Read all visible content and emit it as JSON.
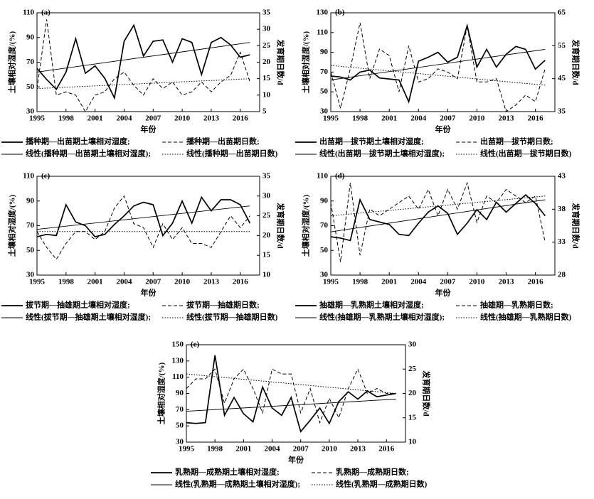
{
  "chart_data": [
    {
      "type": "line",
      "panel_label": "(a)",
      "xlabel": "年份",
      "ylabel": "土壤相对湿度/(%)",
      "y2label": "发育期日数/d",
      "x": [
        1995,
        1996,
        1997,
        1998,
        1999,
        2000,
        2001,
        2002,
        2003,
        2004,
        2005,
        2006,
        2007,
        2008,
        2009,
        2010,
        2011,
        2012,
        2013,
        2014,
        2015,
        2016,
        2017
      ],
      "xlim": [
        1995,
        2018
      ],
      "xticks": [
        1995,
        1998,
        2001,
        2004,
        2007,
        2010,
        2013,
        2016
      ],
      "ylim": [
        30,
        110
      ],
      "yticks": [
        30,
        50,
        70,
        90,
        110
      ],
      "y2lim": [
        5,
        35
      ],
      "y2ticks": [
        5,
        10,
        15,
        20,
        25,
        30,
        35
      ],
      "series": [
        {
          "name": "播种期—出苗期土壤相对湿度;",
          "color": "#000",
          "dash": "solid",
          "values": [
            65,
            56,
            48,
            62,
            89,
            61,
            67,
            57,
            41,
            87,
            100,
            75,
            87,
            88,
            70,
            89,
            86,
            60,
            86,
            90,
            84,
            74,
            76
          ]
        },
        {
          "name": "播种期—出苗期日数;",
          "color": "#000",
          "dash": "dashed",
          "axis": "y2",
          "values": [
            12,
            33,
            10,
            11,
            10,
            5,
            10,
            11,
            15,
            17,
            13,
            10,
            15,
            12,
            14,
            10,
            11,
            14,
            11,
            14,
            16,
            23,
            14
          ]
        },
        {
          "name": "线性(播种期—出苗期土壤相对湿度);",
          "color": "#000",
          "dash": "thin",
          "x": [
            1995,
            2017
          ],
          "values": [
            62,
            86
          ]
        },
        {
          "name": "线性(播种期—出苗期日数)",
          "color": "#000",
          "dash": "dotted",
          "axis": "y2",
          "x": [
            1995,
            2017
          ],
          "values": [
            12,
            15
          ]
        }
      ]
    },
    {
      "type": "line",
      "panel_label": "(b)",
      "xlabel": "年份",
      "ylabel": "土壤相对湿度/(%)",
      "y2label": "发育期日数/d",
      "x": [
        1995,
        1996,
        1997,
        1998,
        1999,
        2000,
        2001,
        2002,
        2003,
        2004,
        2005,
        2006,
        2007,
        2008,
        2009,
        2010,
        2011,
        2012,
        2013,
        2014,
        2015,
        2016,
        2017
      ],
      "xlim": [
        1995,
        2018
      ],
      "xticks": [
        1995,
        1998,
        2001,
        2004,
        2007,
        2010,
        2013,
        2016
      ],
      "ylim": [
        30,
        130
      ],
      "yticks": [
        30,
        50,
        70,
        90,
        110,
        130
      ],
      "y2lim": [
        35,
        65
      ],
      "y2ticks": [
        35,
        45,
        55,
        65
      ],
      "series": [
        {
          "name": "出苗期—拔节期土壤相对湿度;",
          "color": "#000",
          "dash": "solid",
          "values": [
            66,
            65,
            62,
            70,
            72,
            64,
            63,
            62,
            40,
            81,
            85,
            90,
            80,
            85,
            117,
            75,
            93,
            75,
            88,
            96,
            93,
            73,
            82
          ]
        },
        {
          "name": "出苗期—拔节期日数;",
          "color": "#000",
          "dash": "dashed",
          "axis": "y2",
          "values": [
            47,
            36,
            48,
            62,
            45,
            54,
            52,
            41,
            55,
            44,
            45,
            48,
            47,
            45,
            61,
            44,
            44,
            45,
            35,
            37,
            40,
            38,
            48
          ]
        },
        {
          "name": "线性(出苗期—拔节期土壤相对湿度);",
          "color": "#000",
          "dash": "thin",
          "x": [
            1995,
            2017
          ],
          "values": [
            62,
            93
          ]
        },
        {
          "name": "线性(出苗期—拔节期日数)",
          "color": "#000",
          "dash": "dotted",
          "axis": "y2",
          "x": [
            1995,
            2017
          ],
          "values": [
            49,
            43
          ]
        }
      ]
    },
    {
      "type": "line",
      "panel_label": "(c)",
      "xlabel": "年份",
      "ylabel": "土壤相对湿度/(%)",
      "y2label": "发育期日数/d",
      "x": [
        1995,
        1996,
        1997,
        1998,
        1999,
        2000,
        2001,
        2002,
        2003,
        2004,
        2005,
        2006,
        2007,
        2008,
        2009,
        2010,
        2011,
        2012,
        2013,
        2014,
        2015,
        2016,
        2017
      ],
      "xlim": [
        1995,
        2018
      ],
      "xticks": [
        1995,
        1998,
        2001,
        2004,
        2007,
        2010,
        2013,
        2016
      ],
      "ylim": [
        30,
        110
      ],
      "yticks": [
        30,
        50,
        70,
        90,
        110
      ],
      "y2lim": [
        10,
        35
      ],
      "y2ticks": [
        10,
        15,
        20,
        25,
        30,
        35
      ],
      "series": [
        {
          "name": "拔节期—抽雄期土壤相对湿度;",
          "color": "#000",
          "dash": "solid",
          "values": [
            61,
            63,
            62,
            87,
            73,
            70,
            61,
            63,
            71,
            78,
            86,
            89,
            87,
            62,
            72,
            90,
            72,
            93,
            82,
            91,
            91,
            87,
            72
          ]
        },
        {
          "name": "拔节期—抽雄期日数;",
          "color": "#000",
          "dash": "dashed",
          "axis": "y2",
          "values": [
            21,
            17,
            14,
            18,
            21,
            21,
            19,
            21,
            27,
            30,
            23,
            22,
            17,
            23,
            19,
            22,
            18,
            18,
            17,
            21,
            25,
            22,
            25
          ]
        },
        {
          "name": "线性(拔节期—抽雄期土壤相对湿度);",
          "color": "#000",
          "dash": "thin",
          "x": [
            1995,
            2017
          ],
          "values": [
            67,
            86
          ]
        },
        {
          "name": "线性(拔节期—抽雄期日数)",
          "color": "#000",
          "dash": "dotted",
          "axis": "y2",
          "x": [
            1995,
            2017
          ],
          "values": [
            21,
            21
          ]
        }
      ]
    },
    {
      "type": "line",
      "panel_label": "(d)",
      "xlabel": "年份",
      "ylabel": "土壤相对湿度/(%)",
      "y2label": "发育期日数/d",
      "x": [
        1995,
        1996,
        1997,
        1998,
        1999,
        2000,
        2001,
        2002,
        2003,
        2004,
        2005,
        2006,
        2007,
        2008,
        2009,
        2010,
        2011,
        2012,
        2013,
        2014,
        2015,
        2016,
        2017
      ],
      "xlim": [
        1995,
        2018
      ],
      "xticks": [
        1995,
        1998,
        2001,
        2004,
        2007,
        2010,
        2013,
        2016
      ],
      "ylim": [
        30,
        110
      ],
      "yticks": [
        30,
        50,
        70,
        90,
        110
      ],
      "y2lim": [
        28,
        43
      ],
      "y2ticks": [
        28,
        33,
        38,
        43
      ],
      "series": [
        {
          "name": "抽雄期—乳熟期土壤相对湿度;",
          "color": "#000",
          "dash": "solid",
          "values": [
            61,
            60,
            58,
            91,
            75,
            73,
            71,
            63,
            62,
            72,
            81,
            86,
            80,
            63,
            72,
            83,
            75,
            89,
            81,
            88,
            95,
            88,
            78
          ]
        },
        {
          "name": "抽雄期—乳熟期日数;",
          "color": "#000",
          "dash": "dashed",
          "axis": "y2",
          "values": [
            39,
            30,
            42,
            31,
            38,
            37,
            38,
            39,
            40,
            38,
            41,
            37,
            41,
            38,
            42,
            36,
            40,
            39,
            41,
            40,
            39,
            40,
            33
          ]
        },
        {
          "name": "线性(抽雄期—乳熟期土壤相对湿度);",
          "color": "#000",
          "dash": "thin",
          "x": [
            1995,
            2017
          ],
          "values": [
            65,
            91
          ]
        },
        {
          "name": "线性(抽雄期—乳熟期日数)",
          "color": "#000",
          "dash": "dotted",
          "axis": "y2",
          "x": [
            1995,
            2017
          ],
          "values": [
            37,
            40
          ]
        }
      ]
    },
    {
      "type": "line",
      "panel_label": "(e)",
      "xlabel": "年份",
      "ylabel": "土壤相对湿度/(%)",
      "y2label": "发育期日数/d",
      "x": [
        1995,
        1996,
        1997,
        1998,
        1999,
        2000,
        2001,
        2002,
        2003,
        2004,
        2005,
        2006,
        2007,
        2008,
        2009,
        2010,
        2011,
        2012,
        2013,
        2014,
        2015,
        2016,
        2017
      ],
      "xlim": [
        1995,
        2018
      ],
      "xticks": [
        1995,
        1998,
        2001,
        2004,
        2007,
        2010,
        2013,
        2016
      ],
      "ylim": [
        30,
        150
      ],
      "yticks": [
        30,
        50,
        70,
        90,
        110,
        130,
        150
      ],
      "y2lim": [
        10,
        30
      ],
      "y2ticks": [
        10,
        15,
        20,
        25,
        30
      ],
      "series": [
        {
          "name": "乳熟期—成熟期土壤相对湿度;",
          "color": "#000",
          "dash": "solid",
          "values": [
            54,
            53,
            54,
            137,
            63,
            85,
            65,
            55,
            98,
            72,
            63,
            85,
            43,
            57,
            72,
            53,
            80,
            92,
            83,
            93,
            86,
            88,
            90
          ]
        },
        {
          "name": "乳熟期—成熟期日数;",
          "color": "#000",
          "dash": "dashed",
          "axis": "y2",
          "values": [
            21,
            23,
            23,
            25,
            18,
            23,
            25,
            21,
            16,
            25,
            24,
            24,
            16,
            21,
            14,
            19,
            15,
            21,
            25,
            20,
            21,
            20,
            20
          ]
        },
        {
          "name": "线性(乳熟期—成熟期土壤相对湿度);",
          "color": "#000",
          "dash": "thin",
          "x": [
            1995,
            2017
          ],
          "values": [
            68,
            83
          ]
        },
        {
          "name": "线性(乳熟期—成熟期日数)",
          "color": "#000",
          "dash": "dotted",
          "axis": "y2",
          "x": [
            1995,
            2017
          ],
          "values": [
            24,
            20
          ]
        }
      ]
    }
  ]
}
